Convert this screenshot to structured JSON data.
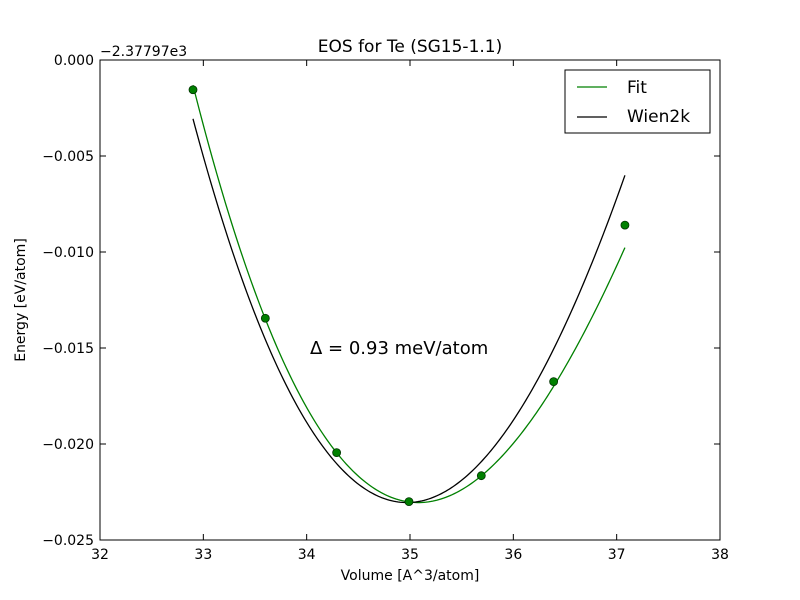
{
  "chart_data": {
    "type": "line",
    "title": "EOS for Te (SG15-1.1)",
    "xlabel": "Volume [A^3/atom]",
    "ylabel": "Energy [eV/atom]",
    "y_offset_label": "−2.37797e3",
    "xlim": [
      32,
      38
    ],
    "ylim": [
      -0.025,
      0.0
    ],
    "xticks": [
      32,
      33,
      34,
      35,
      36,
      37,
      38
    ],
    "xtick_labels": [
      "32",
      "33",
      "34",
      "35",
      "36",
      "37",
      "38"
    ],
    "yticks": [
      0.0,
      -0.005,
      -0.01,
      -0.015,
      -0.02,
      -0.025
    ],
    "ytick_labels": [
      "0.000",
      "−0.005",
      "−0.010",
      "−0.015",
      "−0.020",
      "−0.025"
    ],
    "grid": false,
    "legend_position": "top-right",
    "annotation": "Δ = 0.93 meV/atom",
    "series": [
      {
        "name": "Fit",
        "color": "#008000",
        "style": "curve",
        "eos": {
          "V0": 35.08,
          "E0": -0.02305,
          "a": 0.00392,
          "b": -0.0003
        }
      },
      {
        "name": "Wien2k",
        "color": "#000000",
        "style": "curve",
        "eos": {
          "V0": 34.97,
          "E0": -0.02305,
          "a": 0.00425,
          "b": -0.0002
        }
      },
      {
        "name": "",
        "color": "#008000",
        "style": "points",
        "x": [
          32.9,
          33.6,
          34.29,
          34.99,
          35.69,
          36.39,
          37.08
        ],
        "y": [
          -0.00155,
          -0.01345,
          -0.02045,
          -0.023,
          -0.02165,
          -0.01675,
          -0.0086
        ]
      }
    ],
    "curve_range": [
      32.9,
      37.08
    ]
  }
}
